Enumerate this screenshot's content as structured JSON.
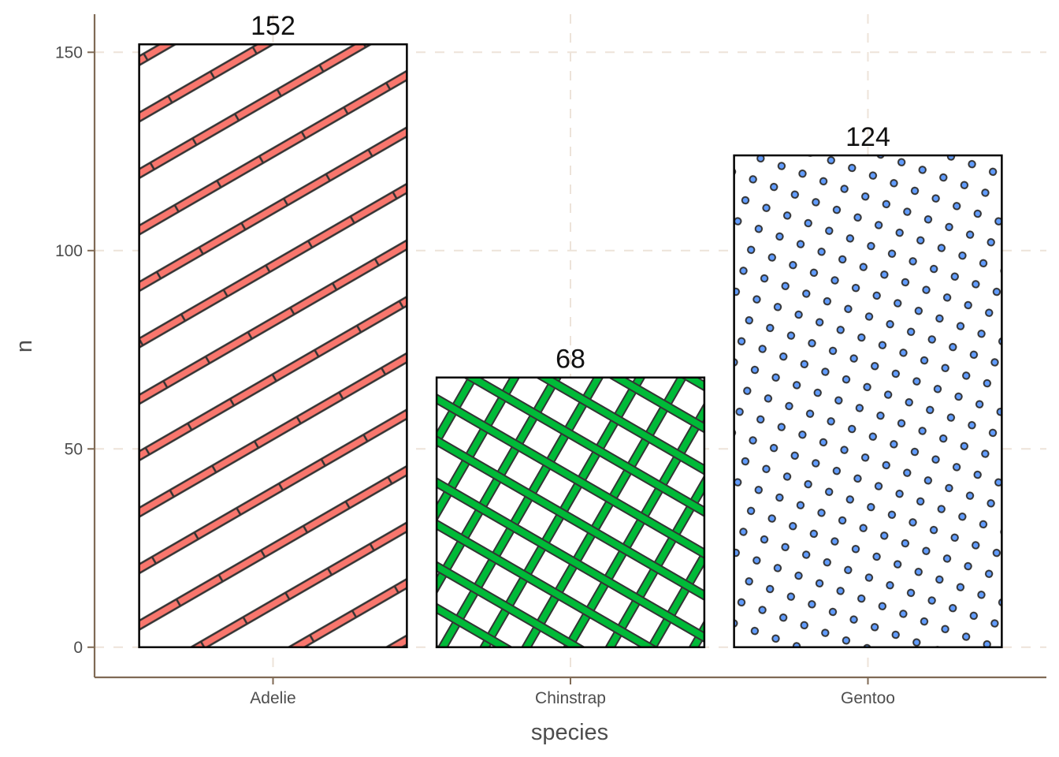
{
  "chart_data": {
    "type": "bar",
    "categories": [
      "Adelie",
      "Chinstrap",
      "Gentoo"
    ],
    "values": [
      152,
      68,
      124
    ],
    "data_labels": [
      "152",
      "68",
      "124"
    ],
    "xlabel": "species",
    "ylabel": "n",
    "ylim": [
      -7.6,
      159.6
    ],
    "yticks": [
      0,
      50,
      100,
      150
    ],
    "ytick_labels": [
      "0",
      "50",
      "100",
      "150"
    ],
    "grid": true,
    "legend": "none",
    "patterns": [
      "stripe",
      "crosshatch",
      "circle"
    ],
    "fills": [
      "#F8766D",
      "#00BA38",
      "#619CFF"
    ],
    "axis_color": "#7F6A55",
    "grid_color": "#EDE3D9"
  }
}
